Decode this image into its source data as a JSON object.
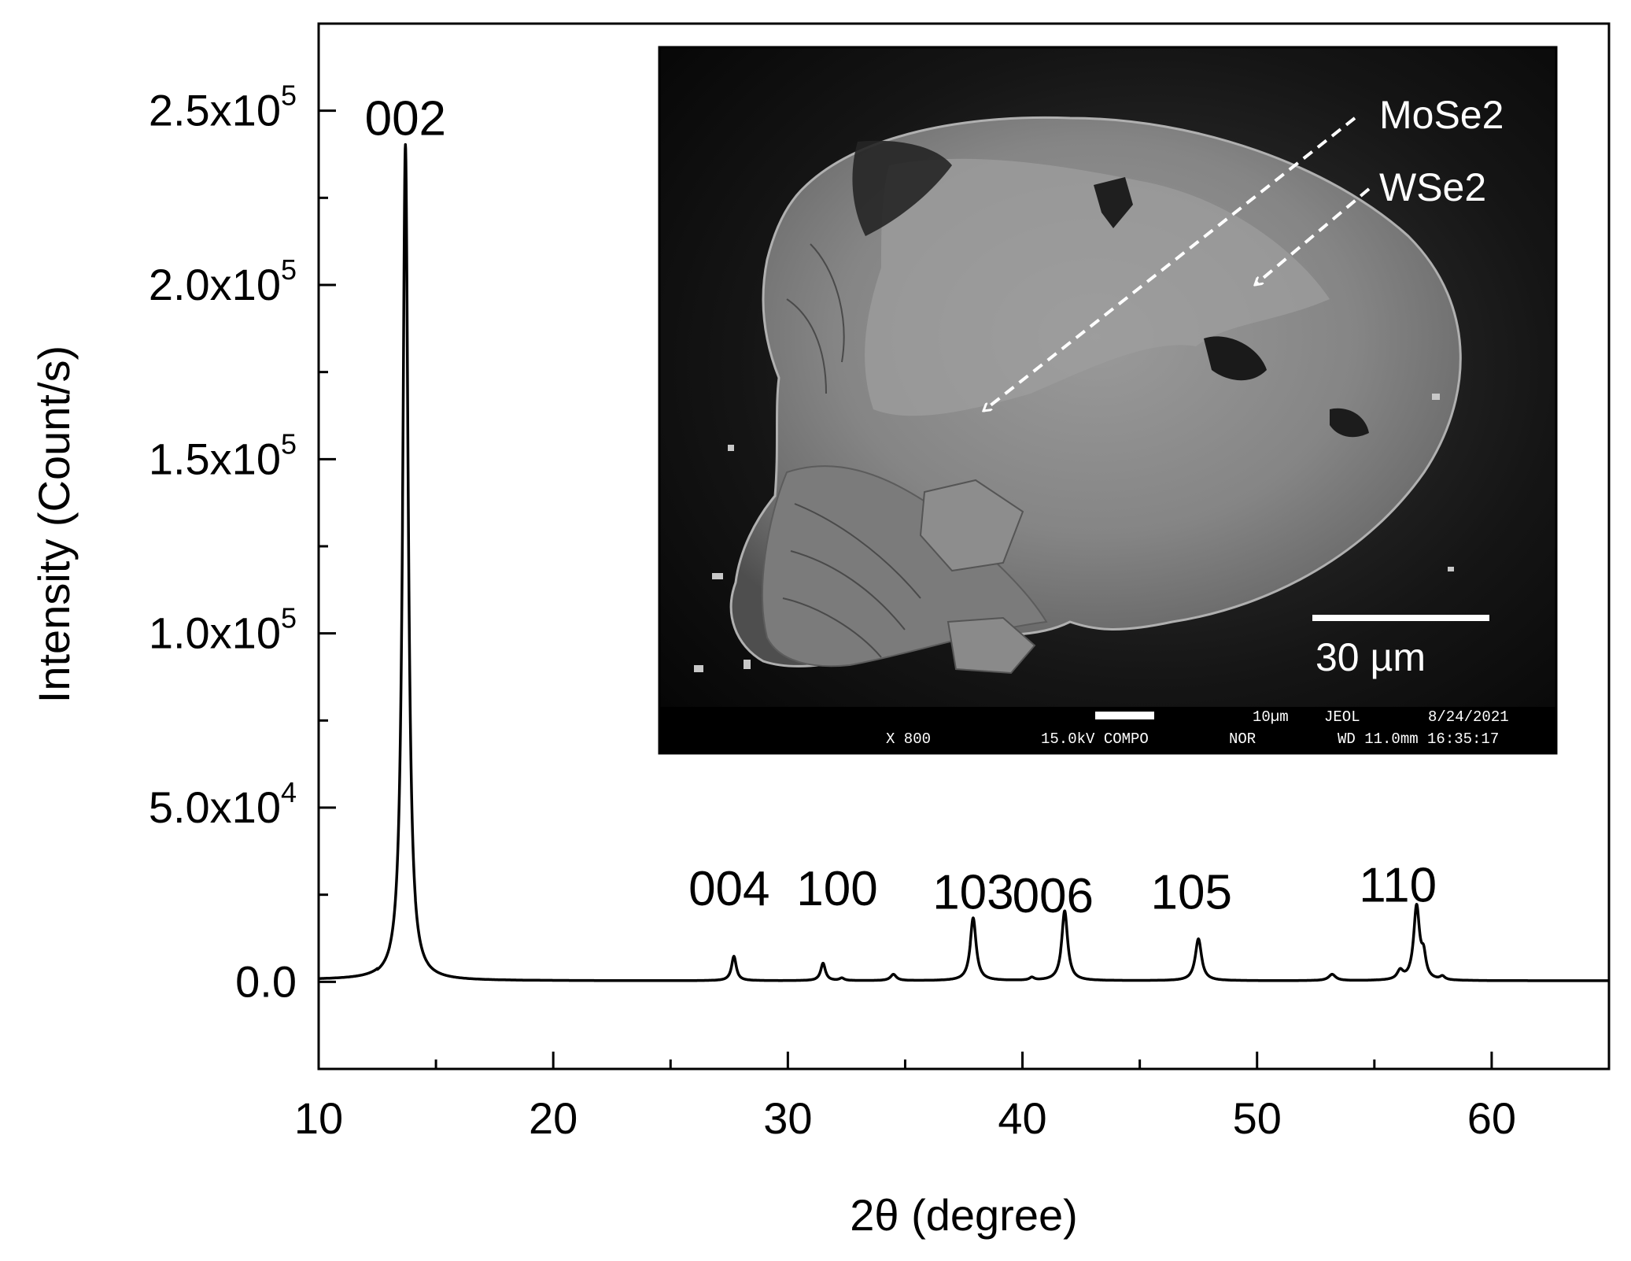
{
  "chart_data": {
    "type": "line",
    "title": "",
    "xlabel": "2θ (degree)",
    "ylabel": "Intensity (Count/s)",
    "xlim": [
      10,
      65
    ],
    "ylim": [
      -25000,
      275000
    ],
    "x_ticks": [
      10,
      20,
      30,
      40,
      50,
      60
    ],
    "x_tick_labels": [
      "10",
      "20",
      "30",
      "40",
      "50",
      "60"
    ],
    "y_ticks": [
      0,
      50000,
      100000,
      150000,
      200000,
      250000
    ],
    "y_tick_labels": [
      {
        "mantissa": "0.0",
        "exp": ""
      },
      {
        "mantissa": "5.0x10",
        "exp": "4"
      },
      {
        "mantissa": "1.0x10",
        "exp": "5"
      },
      {
        "mantissa": "1.5x10",
        "exp": "5"
      },
      {
        "mantissa": "2.0x10",
        "exp": "5"
      },
      {
        "mantissa": "2.5x10",
        "exp": "5"
      }
    ],
    "grid": false,
    "legend": "none",
    "line_color": "#000000",
    "peaks": [
      {
        "label": "002",
        "x": 13.7,
        "y": 240000,
        "w": 0.14
      },
      {
        "label": "004",
        "x": 27.7,
        "y": 7000,
        "w": 0.12
      },
      {
        "label": "100",
        "x": 31.5,
        "y": 5000,
        "w": 0.12
      },
      {
        "label": "",
        "x": 32.3,
        "y": 700,
        "w": 0.12
      },
      {
        "label": "",
        "x": 34.5,
        "y": 1800,
        "w": 0.15
      },
      {
        "label": "103",
        "x": 37.9,
        "y": 18000,
        "w": 0.15
      },
      {
        "label": "",
        "x": 40.4,
        "y": 800,
        "w": 0.12
      },
      {
        "label": "006",
        "x": 41.8,
        "y": 20000,
        "w": 0.15
      },
      {
        "label": "105",
        "x": 47.5,
        "y": 12000,
        "w": 0.16
      },
      {
        "label": "",
        "x": 53.2,
        "y": 1800,
        "w": 0.18
      },
      {
        "label": "",
        "x": 56.1,
        "y": 2500,
        "w": 0.15
      },
      {
        "label": "110",
        "x": 56.8,
        "y": 21000,
        "w": 0.15
      },
      {
        "label": "",
        "x": 57.1,
        "y": 6000,
        "w": 0.12
      },
      {
        "label": "",
        "x": 57.9,
        "y": 1000,
        "w": 0.12
      }
    ],
    "peak_labels": [
      {
        "text": "002",
        "x": 13.7,
        "y": 243000
      },
      {
        "text": "004",
        "x": 27.5,
        "y": 22000
      },
      {
        "text": "100",
        "x": 32.1,
        "y": 22000
      },
      {
        "text": "103",
        "x": 37.9,
        "y": 21000
      },
      {
        "text": "006",
        "x": 41.3,
        "y": 20000
      },
      {
        "text": "105",
        "x": 47.2,
        "y": 21000
      },
      {
        "text": "110",
        "x": 56.0,
        "y": 23000
      }
    ]
  },
  "inset": {
    "annotation_1": "MoSe2",
    "annotation_2": "WSe2",
    "scale_bar_label": "30 µm",
    "footer": {
      "magnification": "X 800",
      "voltage_mode": "15.0kV COMPO",
      "mode": "NOR",
      "scale": "10µm",
      "maker": "JEOL",
      "date": "8/24/2021",
      "wd_time": "WD 11.0mm 16:35:17"
    }
  }
}
